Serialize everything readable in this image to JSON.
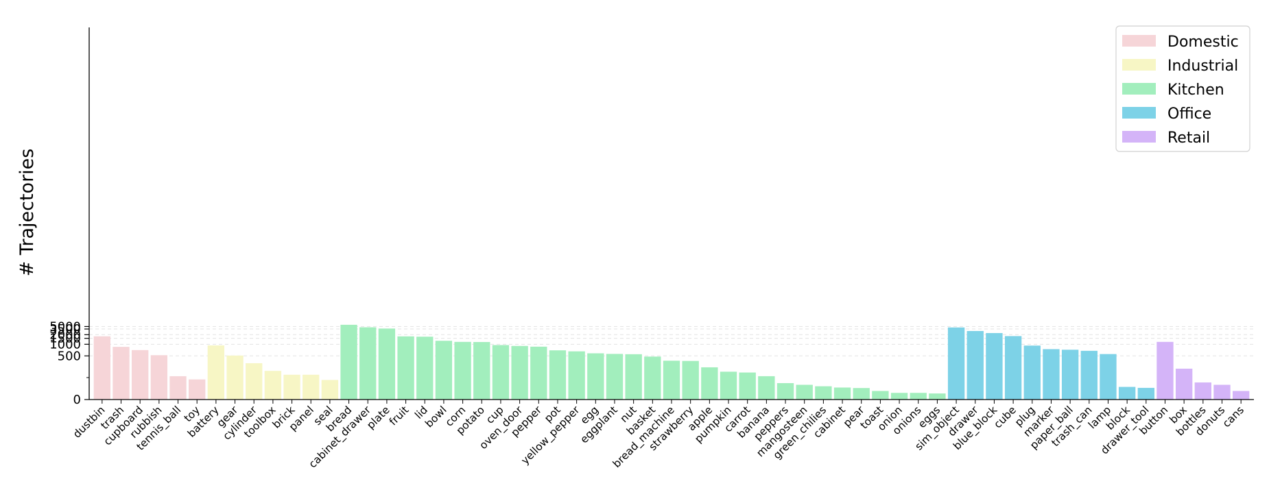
{
  "chart_data": {
    "type": "bar",
    "title": "",
    "xlabel": "",
    "ylabel": "# Trajectories",
    "yscale": "symlog",
    "ylim": [
      0,
      8000
    ],
    "yticks": [
      0,
      500,
      1000,
      1500,
      2000,
      3500,
      5000
    ],
    "ytick_labels": [
      "0",
      "500",
      "1000",
      "1500",
      "2000",
      "3500",
      "5000"
    ],
    "grid": "horizontal dashed",
    "legend_position": "top-right",
    "category_colors": {
      "Domestic": "#f6d5d8",
      "Industrial": "#f7f6c5",
      "Kitchen": "#a2eebd",
      "Office": "#7dd2e7",
      "Retail": "#d4b4f8"
    },
    "legend": [
      "Domestic",
      "Industrial",
      "Kitchen",
      "Office",
      "Retail"
    ],
    "categories": [
      "dustbin",
      "trash",
      "cupboard",
      "rubbish",
      "tennis_ball",
      "toy",
      "battery",
      "gear",
      "cylinder",
      "toolbox",
      "brick",
      "panel",
      "seal",
      "bread",
      "cabinet_drawer",
      "plate",
      "fruit",
      "lid",
      "bowl",
      "corn",
      "potato",
      "cup",
      "oven_door",
      "pepper",
      "pot",
      "yellow_pepper",
      "egg",
      "eggplant",
      "nut",
      "basket",
      "bread_machine",
      "strawberry",
      "apple",
      "pumpkin",
      "carrot",
      "banana",
      "peppers",
      "mangosteen",
      "green_chilies",
      "cabinet",
      "pear",
      "toast",
      "onion",
      "onions",
      "eggs",
      "sim_object",
      "drawer",
      "blue_block",
      "cube",
      "plug",
      "marker",
      "paper_ball",
      "trash_can",
      "lamp",
      "block",
      "drawer_tool",
      "button",
      "box",
      "bottles",
      "donuts",
      "cans"
    ],
    "groups": [
      "Domestic",
      "Domestic",
      "Domestic",
      "Domestic",
      "Domestic",
      "Domestic",
      "Industrial",
      "Industrial",
      "Industrial",
      "Industrial",
      "Industrial",
      "Industrial",
      "Industrial",
      "Kitchen",
      "Kitchen",
      "Kitchen",
      "Kitchen",
      "Kitchen",
      "Kitchen",
      "Kitchen",
      "Kitchen",
      "Kitchen",
      "Kitchen",
      "Kitchen",
      "Kitchen",
      "Kitchen",
      "Kitchen",
      "Kitchen",
      "Kitchen",
      "Kitchen",
      "Kitchen",
      "Kitchen",
      "Kitchen",
      "Kitchen",
      "Kitchen",
      "Kitchen",
      "Kitchen",
      "Kitchen",
      "Kitchen",
      "Kitchen",
      "Kitchen",
      "Kitchen",
      "Kitchen",
      "Kitchen",
      "Kitchen",
      "Office",
      "Office",
      "Office",
      "Office",
      "Office",
      "Office",
      "Office",
      "Office",
      "Office",
      "Office",
      "Office",
      "Retail",
      "Retail",
      "Retail",
      "Retail",
      "Retail"
    ],
    "values": [
      1750,
      850,
      700,
      520,
      150,
      120,
      930,
      510,
      330,
      210,
      165,
      165,
      115,
      7600,
      4400,
      3700,
      1740,
      1700,
      1260,
      1170,
      1160,
      950,
      900,
      860,
      690,
      650,
      580,
      560,
      550,
      480,
      380,
      375,
      260,
      200,
      190,
      150,
      90,
      78,
      68,
      60,
      57,
      40,
      30,
      30,
      27,
      4300,
      2800,
      2300,
      1780,
      920,
      740,
      715,
      670,
      555,
      64,
      58,
      1170,
      240,
      95,
      78,
      40
    ]
  }
}
